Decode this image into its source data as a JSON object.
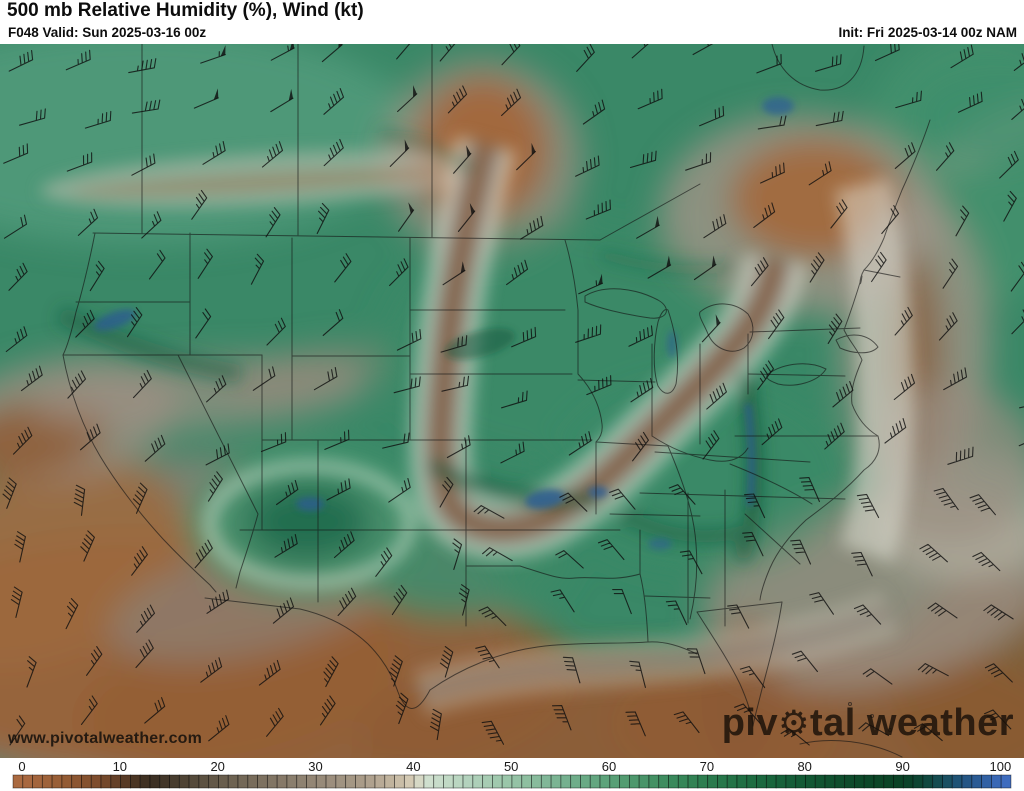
{
  "header": {
    "title": "500 mb Relative Humidity (%), Wind (kt)",
    "valid": "F048 Valid: Sun 2025-03-16 00z",
    "init": "Init: Fri 2025-03-14 00z NAM"
  },
  "map": {
    "watermark": "www.pivotalweather.com",
    "logo": {
      "pre": "piv",
      "gear_glyph": "⚙",
      "post": "tal weather"
    }
  },
  "colorbar": {
    "label": "Relative Humidity (%)",
    "min": 0,
    "max": 100,
    "ticks": [
      0,
      10,
      20,
      30,
      40,
      50,
      60,
      70,
      80,
      90,
      100
    ],
    "stops": [
      {
        "v": 0,
        "c": "#aa6a41"
      },
      {
        "v": 4,
        "c": "#965d35"
      },
      {
        "v": 8,
        "c": "#7a4b2c"
      },
      {
        "v": 11,
        "c": "#503723"
      },
      {
        "v": 13,
        "c": "#392d21"
      },
      {
        "v": 16,
        "c": "#4a3f31"
      },
      {
        "v": 20,
        "c": "#675c4b"
      },
      {
        "v": 25,
        "c": "#7f7362"
      },
      {
        "v": 30,
        "c": "#958877"
      },
      {
        "v": 35,
        "c": "#ab9d8a"
      },
      {
        "v": 38,
        "c": "#c4b7a1"
      },
      {
        "v": 40,
        "c": "#d8cfb9"
      },
      {
        "v": 41,
        "c": "#d3e0d0"
      },
      {
        "v": 45,
        "c": "#b6d4bf"
      },
      {
        "v": 50,
        "c": "#97c4a7"
      },
      {
        "v": 55,
        "c": "#78b291"
      },
      {
        "v": 60,
        "c": "#5aa178"
      },
      {
        "v": 65,
        "c": "#418f62"
      },
      {
        "v": 70,
        "c": "#2b7c4e"
      },
      {
        "v": 75,
        "c": "#1c6a40"
      },
      {
        "v": 80,
        "c": "#125834"
      },
      {
        "v": 85,
        "c": "#0d4a2a"
      },
      {
        "v": 90,
        "c": "#0a4124"
      },
      {
        "v": 92,
        "c": "#0e4636"
      },
      {
        "v": 94,
        "c": "#174e58"
      },
      {
        "v": 96,
        "c": "#22547e"
      },
      {
        "v": 98,
        "c": "#2e5d9b"
      },
      {
        "v": 100,
        "c": "#3e6cbe"
      }
    ]
  }
}
